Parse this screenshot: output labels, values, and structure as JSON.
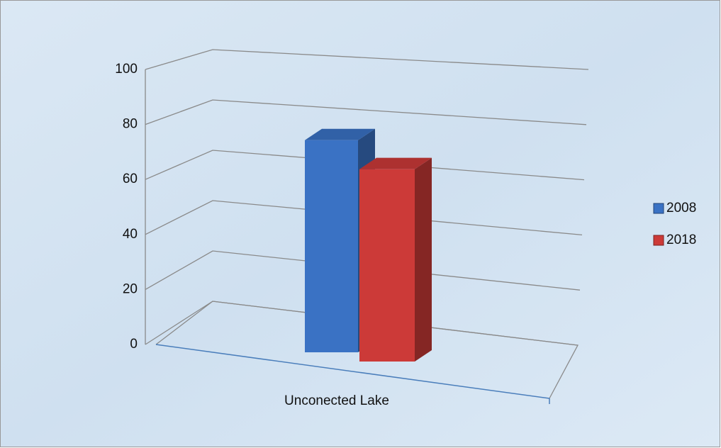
{
  "chart_data": {
    "type": "bar3d",
    "categories": [
      "Unconected Lake"
    ],
    "series": [
      {
        "name": "2008",
        "color": "#3a72c4",
        "values": [
          75
        ]
      },
      {
        "name": "2018",
        "color": "#cc3a38",
        "values": [
          68
        ]
      }
    ],
    "ylim": [
      0,
      100
    ],
    "yticks": [
      0,
      20,
      40,
      60,
      80,
      100
    ],
    "grid": true,
    "legend": "right"
  }
}
